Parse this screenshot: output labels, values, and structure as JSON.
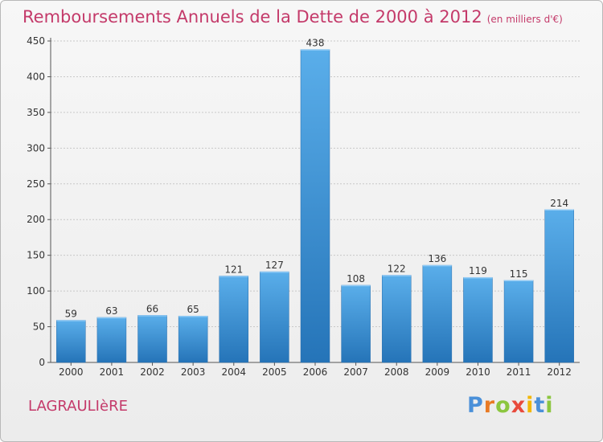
{
  "title": "Remboursements Annuels de la Dette de 2000 à 2012",
  "subtitle": "(en milliers d'€)",
  "commune": "LAGRAULIèRE",
  "logo": {
    "letters": [
      "P",
      "r",
      "o",
      "x",
      "i",
      "t",
      "i"
    ],
    "colors": [
      "#4a90d9",
      "#e87a24",
      "#8cc63f",
      "#e84a3c",
      "#f2b705",
      "#4a90d9",
      "#8cc63f"
    ]
  },
  "colors": {
    "bar": "#3b8fd6",
    "title": "#c43a6a"
  },
  "chart_data": {
    "type": "bar",
    "title": "Remboursements Annuels de la Dette de 2000 à 2012",
    "subtitle": "(en milliers d'€)",
    "xlabel": "",
    "ylabel": "",
    "categories": [
      "2000",
      "2001",
      "2002",
      "2003",
      "2004",
      "2005",
      "2006",
      "2007",
      "2008",
      "2009",
      "2010",
      "2011",
      "2012"
    ],
    "values": [
      59,
      63,
      66,
      65,
      121,
      127,
      438,
      108,
      122,
      136,
      119,
      115,
      214
    ],
    "ylim": [
      0,
      450
    ],
    "yticks": [
      0,
      50,
      100,
      150,
      200,
      250,
      300,
      350,
      400,
      450
    ],
    "grid": true,
    "data_labels": true
  }
}
